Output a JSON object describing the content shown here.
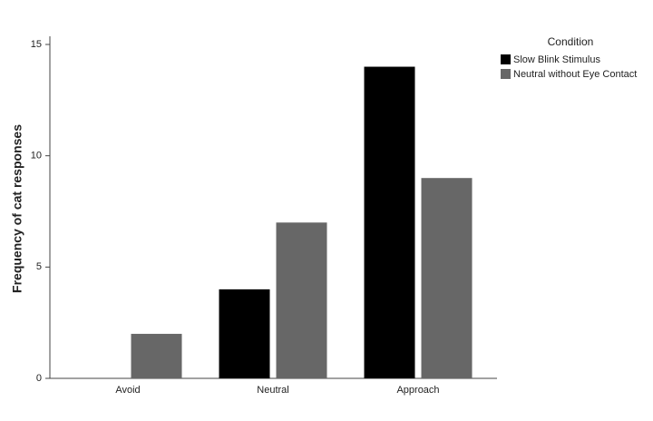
{
  "chart_data": {
    "type": "bar",
    "y_label": "Frequency of cat responses",
    "legend_title": "Condition",
    "categories": [
      "Avoid",
      "Neutral",
      "Approach"
    ],
    "series": [
      {
        "name": "Slow Blink Stimulus",
        "color": "#000000",
        "values": [
          0,
          4,
          14
        ]
      },
      {
        "name": "Neutral without Eye Contact",
        "color": "#676767",
        "values": [
          2,
          7,
          9
        ]
      }
    ],
    "ylim": [
      0,
      15
    ],
    "yticks": [
      0,
      5,
      10,
      15
    ],
    "grid": false,
    "legend": "right"
  }
}
